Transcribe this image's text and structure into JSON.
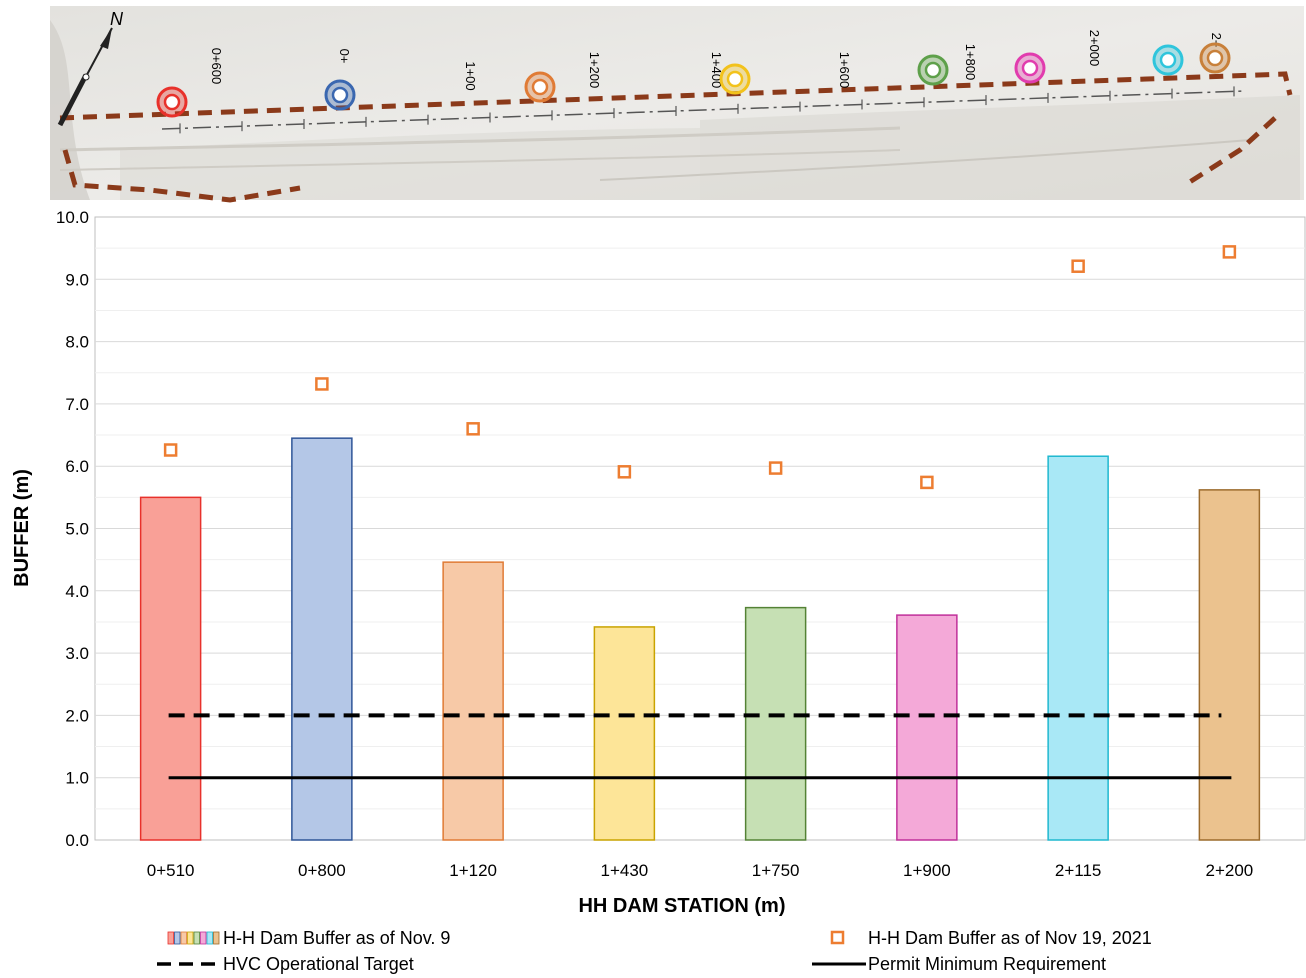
{
  "map": {
    "north_label": "N",
    "station_labels": [
      "0+600",
      "0+",
      "1+00",
      "1+200",
      "1+400",
      "1+600",
      "1+800",
      "2+000",
      "2+"
    ],
    "markers": [
      {
        "color": "#e8312b"
      },
      {
        "color": "#3a67b0"
      },
      {
        "color": "#e07b35"
      },
      {
        "color": "#f2c21b"
      },
      {
        "color": "#5ea04a"
      },
      {
        "color": "#e13cae"
      },
      {
        "color": "#2fc5dc"
      },
      {
        "color": "#c8803a"
      }
    ]
  },
  "chart_data": {
    "type": "bar",
    "xlabel": "HH DAM STATION (m)",
    "ylabel": "BUFFER (m)",
    "ylim": [
      0,
      10
    ],
    "yticks": [
      "0.0",
      "1.0",
      "2.0",
      "3.0",
      "4.0",
      "5.0",
      "6.0",
      "7.0",
      "8.0",
      "9.0",
      "10.0"
    ],
    "grid": true,
    "categories": [
      "0+510",
      "0+800",
      "1+120",
      "1+430",
      "1+750",
      "1+900",
      "2+115",
      "2+200"
    ],
    "bar_fills": [
      "#f9a097",
      "#b4c7e7",
      "#f7c9a7",
      "#fde598",
      "#c6e0b4",
      "#f4a9d8",
      "#a9e8f6",
      "#ebc28e"
    ],
    "bar_strokes": [
      "#e8312b",
      "#2f5597",
      "#e07b35",
      "#c9a300",
      "#548235",
      "#c0309a",
      "#1fb8cf",
      "#9c6b2c"
    ],
    "series": [
      {
        "name": "H-H Dam Buffer as of Nov. 9",
        "type": "bar",
        "values": [
          5.5,
          6.45,
          4.46,
          3.42,
          3.73,
          3.61,
          6.16,
          5.62
        ]
      },
      {
        "name": "H-H Dam Buffer as of Nov 19, 2021",
        "type": "scatter",
        "color": "#ed7d31",
        "values": [
          6.26,
          7.32,
          6.6,
          5.91,
          5.97,
          5.74,
          9.21,
          9.44
        ]
      },
      {
        "name": "HVC Operational Target",
        "type": "line",
        "style": "dashed",
        "values": [
          2.0,
          2.0,
          2.0,
          2.0,
          2.0,
          2.0,
          2.0,
          2.0
        ]
      },
      {
        "name": "Permit Minimum Requirement",
        "type": "line",
        "style": "solid",
        "values": [
          1.0,
          1.0,
          1.0,
          1.0,
          1.0,
          1.0,
          1.0,
          1.0
        ]
      }
    ]
  }
}
